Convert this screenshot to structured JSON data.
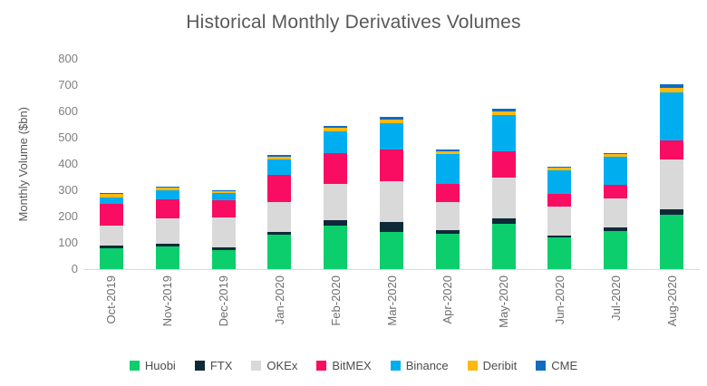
{
  "title": "Historical Monthly Derivatives Volumes",
  "chart_data": {
    "type": "bar",
    "stacked": true,
    "title": "Historical Monthly Derivatives Volumes",
    "xlabel": "",
    "ylabel": "Monthly Volume ($bn)",
    "ylim": [
      0,
      800
    ],
    "yticks": [
      0,
      100,
      200,
      300,
      400,
      500,
      600,
      700,
      800
    ],
    "grid": false,
    "legend_position": "bottom",
    "categories": [
      "Oct-2019",
      "Nov-2019",
      "Dec-2019",
      "Jan-2020",
      "Feb-2020",
      "Mar-2020",
      "Apr-2020",
      "May-2020",
      "Jun-2020",
      "Jul-2020",
      "Aug-2020"
    ],
    "series": [
      {
        "name": "Huobi",
        "color": "#0cce6d",
        "values": [
          80,
          86,
          74,
          130,
          167,
          143,
          135,
          172,
          120,
          146,
          207
        ]
      },
      {
        "name": "FTX",
        "color": "#0e2a38",
        "values": [
          10,
          11,
          8,
          10,
          20,
          37,
          14,
          21,
          9,
          11,
          20
        ]
      },
      {
        "name": "OKEx",
        "color": "#d9d9d9",
        "values": [
          75,
          95,
          113,
          116,
          137,
          153,
          107,
          154,
          108,
          113,
          190
        ]
      },
      {
        "name": "BitMEX",
        "color": "#f80d63",
        "values": [
          85,
          74,
          66,
          102,
          119,
          124,
          68,
          101,
          50,
          52,
          74
        ]
      },
      {
        "name": "Binance",
        "color": "#00aeef",
        "values": [
          23,
          34,
          29,
          61,
          80,
          97,
          113,
          138,
          89,
          106,
          183
        ]
      },
      {
        "name": "Deribit",
        "color": "#fdb813",
        "values": [
          12,
          9,
          6,
          8,
          14,
          15,
          12,
          14,
          9,
          9,
          15
        ]
      },
      {
        "name": "CME",
        "color": "#0f6cbf",
        "values": [
          5,
          5,
          5,
          8,
          8,
          9,
          6,
          9,
          6,
          6,
          15
        ]
      }
    ],
    "totals": [
      290,
      314,
      301,
      435,
      545,
      578,
      455,
      609,
      391,
      443,
      704
    ]
  },
  "axis_style": {
    "axis_line_color": "#d9d9d9"
  }
}
